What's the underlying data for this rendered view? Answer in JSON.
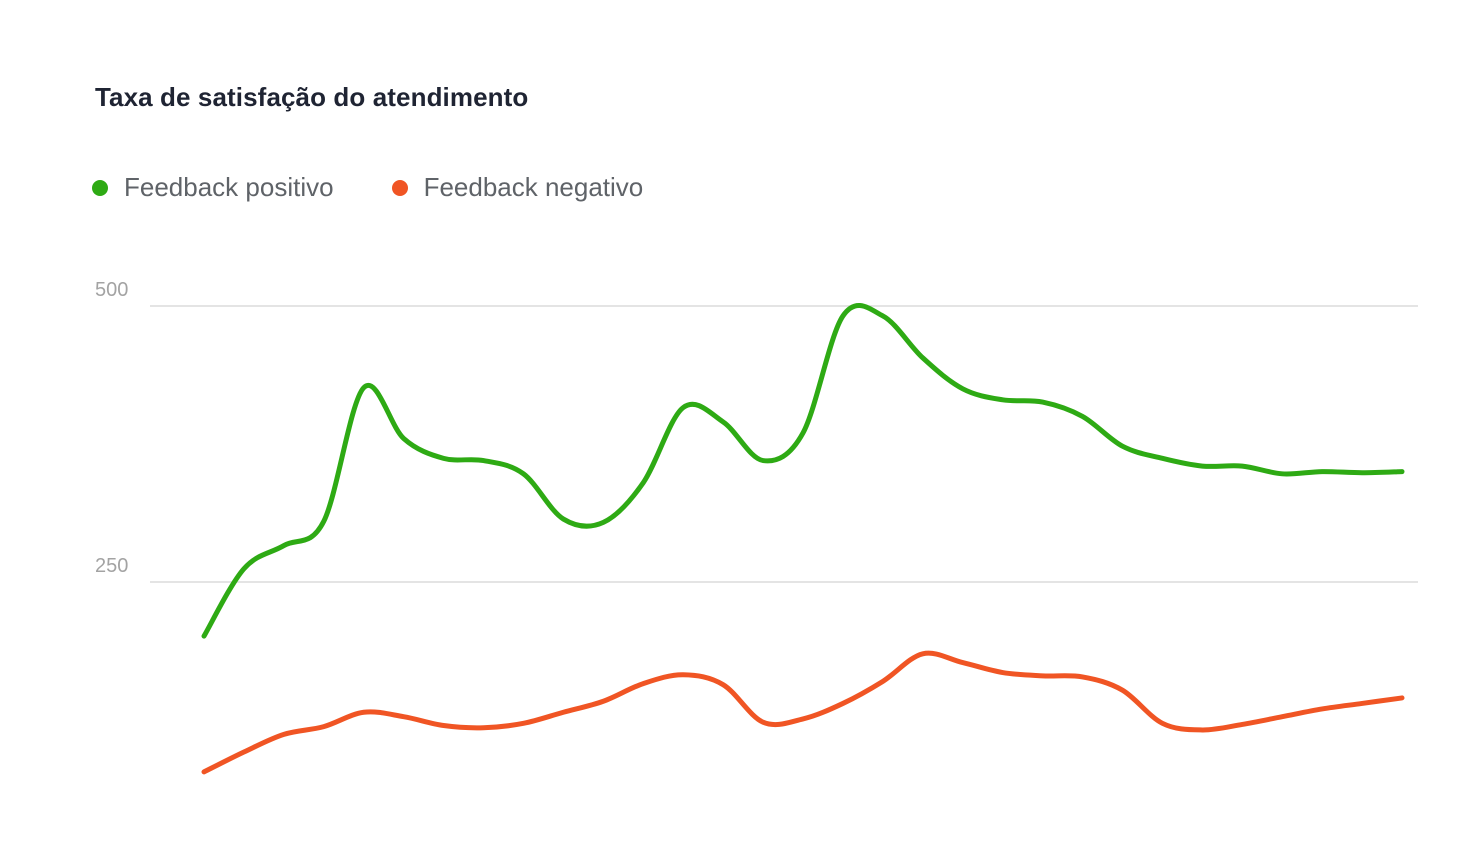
{
  "chart_data": {
    "type": "line",
    "title": "Taxa de satisfação do atendimento",
    "xlabel": "",
    "ylabel": "",
    "ylim": [
      0,
      500
    ],
    "y_ticks": [
      {
        "value": 500,
        "label": "500"
      },
      {
        "value": 250,
        "label": "250"
      }
    ],
    "grid": true,
    "legend_position": "top-left",
    "x": [
      1,
      2,
      3,
      4,
      5,
      6,
      7,
      8,
      9,
      10,
      11,
      12,
      13,
      14,
      15,
      16,
      17,
      18,
      19,
      20,
      21,
      22,
      23,
      24,
      25,
      26,
      27,
      28,
      29,
      30,
      31
    ],
    "series": [
      {
        "name": "Feedback positivo",
        "color": "#2eaa14",
        "values": [
          201,
          262,
          283,
          305,
          426,
          380,
          362,
          360,
          348,
          307,
          304,
          340,
          408,
          395,
          360,
          385,
          491,
          491,
          453,
          425,
          415,
          413,
          400,
          373,
          362,
          355,
          355,
          348,
          350,
          349,
          350
        ]
      },
      {
        "name": "Feedback negativo",
        "color": "#f05524",
        "values": [
          78,
          96,
          112,
          119,
          132,
          128,
          120,
          118,
          122,
          132,
          142,
          158,
          166,
          157,
          123,
          126,
          140,
          160,
          185,
          177,
          168,
          165,
          164,
          152,
          122,
          116,
          121,
          128,
          135,
          140,
          145
        ]
      }
    ]
  }
}
